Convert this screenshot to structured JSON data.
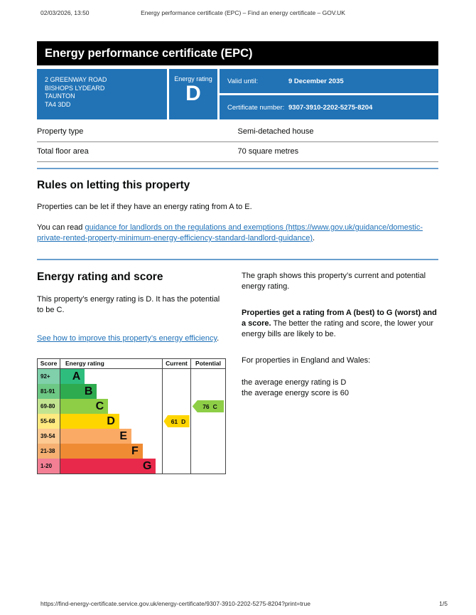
{
  "print_header": {
    "datetime": "02/03/2026, 13:50",
    "title": "Energy performance certificate (EPC) – Find an energy certificate – GOV.UK"
  },
  "banner": {
    "title": "Energy performance certificate (EPC)"
  },
  "summary_box": {
    "accent_color": "#2173b6",
    "address_lines": [
      "2 GREENWAY ROAD",
      "BISHOPS LYDEARD",
      "TAUNTON",
      "TA4 3DD"
    ],
    "rating_label": "Energy rating",
    "rating_value": "D",
    "valid_until_label": "Valid until:",
    "valid_until_value": "9 December 2035",
    "certificate_number_label": "Certificate number:",
    "certificate_number_value": "9307-3910-2202-5275-8204"
  },
  "property_table": {
    "rows": [
      {
        "label": "Property type",
        "value": "Semi-detached house"
      },
      {
        "label": "Total floor area",
        "value": "70 square metres"
      }
    ]
  },
  "letting_section": {
    "heading": "Rules on letting this property",
    "para1": "Properties can be let if they have an energy rating from A to E.",
    "para2_prefix": "You can read ",
    "para2_link": "guidance for landlords on the regulations and exemptions (https://www.gov.uk/guidance/domestic-private-rented-property-minimum-energy-efficiency-standard-landlord-guidance)",
    "para2_suffix": "."
  },
  "rating_section": {
    "heading": "Energy rating and score",
    "para1": "This property’s energy rating is D. It has the potential to be C.",
    "improve_link": "See how to improve this property’s energy efficiency",
    "improve_suffix": ".",
    "right_para1": "The graph shows this property’s current and potential energy rating.",
    "right_para2_bold": "Properties get a rating from A (best) to G (worst) and a score.",
    "right_para2_rest": " The better the rating and score, the lower your energy bills are likely to be.",
    "right_para3": "For properties in England and Wales:",
    "avg_rating_line": "the average energy rating is D",
    "avg_score_line": "the average energy score is 60"
  },
  "chart_data": {
    "type": "bar",
    "subtype": "epc-energy-rating-bands",
    "headers": {
      "score": "Score",
      "rating": "Energy rating",
      "current": "Current",
      "potential": "Potential"
    },
    "bands": [
      {
        "score_range": "92+",
        "letter": "A",
        "color": "#2ebd7d",
        "tint": "#7fd0ab",
        "width_pct": 24
      },
      {
        "score_range": "81-91",
        "letter": "B",
        "color": "#2eab4f",
        "tint": "#6cc884",
        "width_pct": 36
      },
      {
        "score_range": "69-80",
        "letter": "C",
        "color": "#8dce46",
        "tint": "#c2e491",
        "width_pct": 47
      },
      {
        "score_range": "55-68",
        "letter": "D",
        "color": "#ffd500",
        "tint": "#ffea80",
        "width_pct": 58
      },
      {
        "score_range": "39-54",
        "letter": "E",
        "color": "#fbaa66",
        "tint": "#fcca92",
        "width_pct": 70
      },
      {
        "score_range": "21-38",
        "letter": "F",
        "color": "#ef8b33",
        "tint": "#f5b072",
        "width_pct": 81
      },
      {
        "score_range": "1-20",
        "letter": "G",
        "color": "#e8294b",
        "tint": "#f27f94",
        "width_pct": 94
      }
    ],
    "current": {
      "score": 61,
      "letter": "D",
      "band_index": 3,
      "color": "#ffd500"
    },
    "potential": {
      "score": 76,
      "letter": "C",
      "band_index": 2,
      "color": "#8dce46"
    }
  },
  "print_footer": {
    "url": "https://find-energy-certificate.service.gov.uk/energy-certificate/9307-3910-2202-5275-8204?print=true",
    "page": "1/5"
  }
}
